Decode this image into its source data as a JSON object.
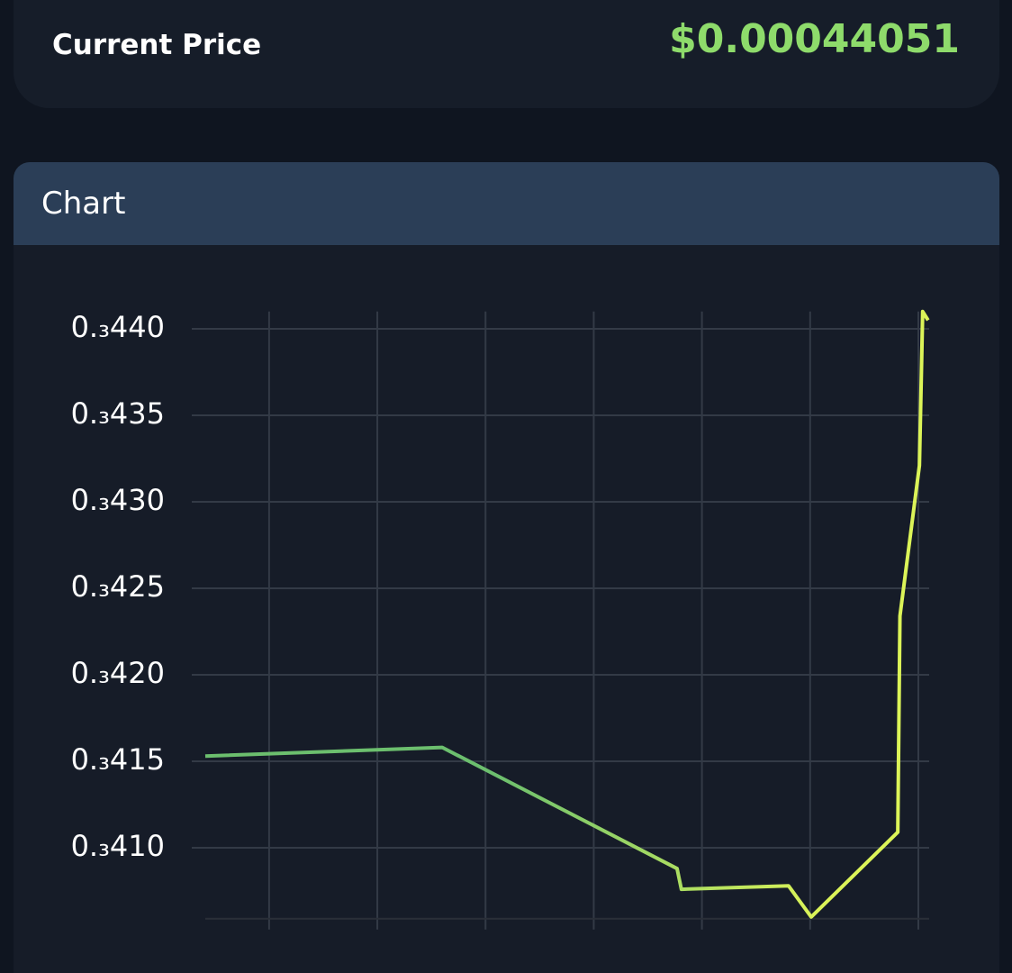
{
  "header": {
    "label": "Current Price",
    "price": "$0.00044051"
  },
  "panel_title": "Chart",
  "chart_data": {
    "type": "line",
    "x": [
      0.41,
      2.6,
      4.77,
      4.81,
      5.8,
      6.01,
      6.81,
      6.83,
      7.01,
      7.04,
      7.09
    ],
    "series": [
      {
        "colors": [
          "#6cbf6e",
          "#dcf458"
        ],
        "values": [
          0.0004153,
          0.0004158,
          0.0004088,
          0.0004076,
          0.0004078,
          0.000406,
          0.0004109,
          0.0004234,
          0.0004321,
          0.000441,
          0.0004405
        ]
      }
    ],
    "xlim": [
      0.41,
      7.1
    ],
    "xticks": [
      1,
      2,
      3,
      4,
      5,
      6,
      7
    ],
    "ylim": [
      0.000406,
      0.000441
    ],
    "yticks": [
      {
        "value": 0.00041,
        "label": "0.₃410"
      },
      {
        "value": 0.000415,
        "label": "0.₃415"
      },
      {
        "value": 0.00042,
        "label": "0.₃420"
      },
      {
        "value": 0.000425,
        "label": "0.₃425"
      },
      {
        "value": 0.00043,
        "label": "0.₃430"
      },
      {
        "value": 0.000435,
        "label": "0.₃435"
      },
      {
        "value": 0.00044,
        "label": "0.₃440"
      }
    ],
    "grid": true
  }
}
